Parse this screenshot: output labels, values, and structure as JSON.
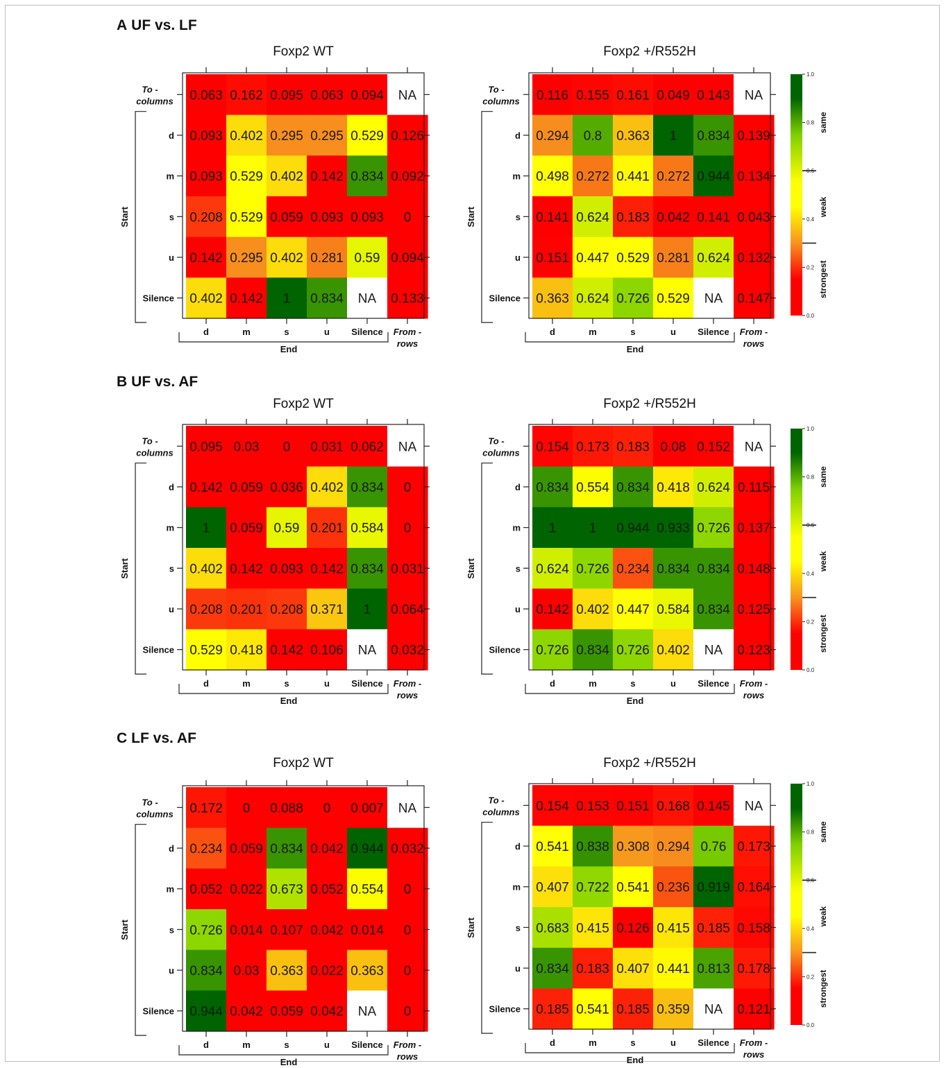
{
  "panels": [
    {
      "label": "A",
      "title": "UF vs. LF"
    },
    {
      "label": "B",
      "title": "UF vs. AF"
    },
    {
      "label": "C",
      "title": "LF vs. AF"
    }
  ],
  "axis_labels": {
    "start": "Start",
    "end": "End",
    "to_columns": [
      "To -",
      "columns"
    ],
    "from_rows": [
      "From -",
      "rows"
    ]
  },
  "colorbar": {
    "ticks": [
      "0.0",
      "0.2",
      "0.4",
      "0.6",
      "0.8",
      "1.0"
    ],
    "categories": [
      "strongest",
      "weak",
      "same"
    ]
  },
  "colors": {
    "red": "#ff0000",
    "orange": "#f7931e",
    "yellow": "#ffff00",
    "light_green": "#7fd000",
    "dark_green": "#006400",
    "na_cell": "#ffffff"
  },
  "chart_data": [
    {
      "type": "heatmap",
      "panel": "A",
      "title": "Foxp2 WT",
      "rows": [
        "To - columns",
        "d",
        "m",
        "s",
        "u",
        "Silence"
      ],
      "columns": [
        "d",
        "m",
        "s",
        "u",
        "Silence",
        "From - rows"
      ],
      "values": [
        [
          "0.063",
          "0.162",
          "0.095",
          "0.063",
          "0.094",
          "NA"
        ],
        [
          "0.093",
          "0.402",
          "0.295",
          "0.295",
          "0.529",
          "0.126"
        ],
        [
          "0.093",
          "0.529",
          "0.402",
          "0.142",
          "0.834",
          "0.092"
        ],
        [
          "0.208",
          "0.529",
          "0.059",
          "0.093",
          "0.093",
          "0"
        ],
        [
          "0.142",
          "0.295",
          "0.402",
          "0.281",
          "0.59",
          "0.094"
        ],
        [
          "0.402",
          "0.142",
          "1",
          "0.834",
          "NA",
          "0.133"
        ]
      ]
    },
    {
      "type": "heatmap",
      "panel": "A",
      "title": "Foxp2 +/R552H",
      "rows": [
        "To - columns",
        "d",
        "m",
        "s",
        "u",
        "Silence"
      ],
      "columns": [
        "d",
        "m",
        "s",
        "u",
        "Silence",
        "From - rows"
      ],
      "values": [
        [
          "0.116",
          "0.155",
          "0.161",
          "0.049",
          "0.143",
          "NA"
        ],
        [
          "0.294",
          "0.8",
          "0.363",
          "1",
          "0.834",
          "0.139"
        ],
        [
          "0.498",
          "0.272",
          "0.441",
          "0.272",
          "0.944",
          "0.134"
        ],
        [
          "0.141",
          "0.624",
          "0.183",
          "0.042",
          "0.141",
          "0.043"
        ],
        [
          "0.151",
          "0.447",
          "0.529",
          "0.281",
          "0.624",
          "0.132"
        ],
        [
          "0.363",
          "0.624",
          "0.726",
          "0.529",
          "NA",
          "0.147"
        ]
      ]
    },
    {
      "type": "heatmap",
      "panel": "B",
      "title": "Foxp2 WT",
      "rows": [
        "To - columns",
        "d",
        "m",
        "s",
        "u",
        "Silence"
      ],
      "columns": [
        "d",
        "m",
        "s",
        "u",
        "Silence",
        "From - rows"
      ],
      "values": [
        [
          "0.095",
          "0.03",
          "0",
          "0.031",
          "0.062",
          "NA"
        ],
        [
          "0.142",
          "0.059",
          "0.036",
          "0.402",
          "0.834",
          "0"
        ],
        [
          "1",
          "0.059",
          "0.59",
          "0.201",
          "0.584",
          "0"
        ],
        [
          "0.402",
          "0.142",
          "0.093",
          "0.142",
          "0.834",
          "0.031"
        ],
        [
          "0.208",
          "0.201",
          "0.208",
          "0.371",
          "1",
          "0.064"
        ],
        [
          "0.529",
          "0.418",
          "0.142",
          "0.106",
          "NA",
          "0.032"
        ]
      ]
    },
    {
      "type": "heatmap",
      "panel": "B",
      "title": "Foxp2 +/R552H",
      "rows": [
        "To - columns",
        "d",
        "m",
        "s",
        "u",
        "Silence"
      ],
      "columns": [
        "d",
        "m",
        "s",
        "u",
        "Silence",
        "From - rows"
      ],
      "values": [
        [
          "0.154",
          "0.173",
          "0.183",
          "0.08",
          "0.152",
          "NA"
        ],
        [
          "0.834",
          "0.554",
          "0.834",
          "0.418",
          "0.624",
          "0.115"
        ],
        [
          "1",
          "1",
          "0.944",
          "0.933",
          "0.726",
          "0.137"
        ],
        [
          "0.624",
          "0.726",
          "0.234",
          "0.834",
          "0.834",
          "0.148"
        ],
        [
          "0.142",
          "0.402",
          "0.447",
          "0.584",
          "0.834",
          "0.125"
        ],
        [
          "0.726",
          "0.834",
          "0.726",
          "0.402",
          "NA",
          "0.123"
        ]
      ]
    },
    {
      "type": "heatmap",
      "panel": "C",
      "title": "Foxp2 WT",
      "rows": [
        "To - columns",
        "d",
        "m",
        "s",
        "u",
        "Silence"
      ],
      "columns": [
        "d",
        "m",
        "s",
        "u",
        "Silence",
        "From - rows"
      ],
      "values": [
        [
          "0.172",
          "0",
          "0.088",
          "0",
          "0.007",
          "NA"
        ],
        [
          "0.234",
          "0.059",
          "0.834",
          "0.042",
          "0.944",
          "0.032"
        ],
        [
          "0.052",
          "0.022",
          "0.673",
          "0.052",
          "0.554",
          "0"
        ],
        [
          "0.726",
          "0.014",
          "0.107",
          "0.042",
          "0.014",
          "0"
        ],
        [
          "0.834",
          "0.03",
          "0.363",
          "0.022",
          "0.363",
          "0"
        ],
        [
          "0.944",
          "0.042",
          "0.059",
          "0.042",
          "NA",
          "0"
        ]
      ]
    },
    {
      "type": "heatmap",
      "panel": "C",
      "title": "Foxp2 +/R552H",
      "rows": [
        "To - columns",
        "d",
        "m",
        "s",
        "u",
        "Silence"
      ],
      "columns": [
        "d",
        "m",
        "s",
        "u",
        "Silence",
        "From - rows"
      ],
      "values": [
        [
          "0.154",
          "0.153",
          "0.151",
          "0.168",
          "0.145",
          "NA"
        ],
        [
          "0.541",
          "0.838",
          "0.308",
          "0.294",
          "0.76",
          "0.173"
        ],
        [
          "0.407",
          "0.722",
          "0.541",
          "0.236",
          "0.919",
          "0.164"
        ],
        [
          "0.683",
          "0.415",
          "0.126",
          "0.415",
          "0.185",
          "0.158"
        ],
        [
          "0.834",
          "0.183",
          "0.407",
          "0.441",
          "0.813",
          "0.178"
        ],
        [
          "0.185",
          "0.541",
          "0.185",
          "0.359",
          "NA",
          "0.121"
        ]
      ]
    }
  ]
}
